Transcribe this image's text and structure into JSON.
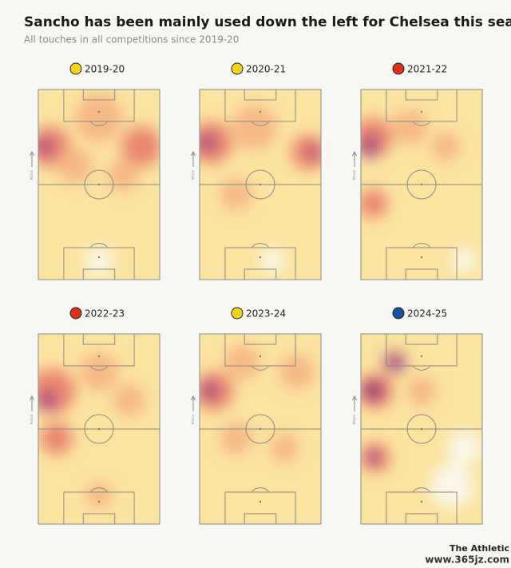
{
  "header": {
    "title": "Sancho has been mainly used down the left for Chelsea this season",
    "subtitle": "All touches in all competitions since 2019-20"
  },
  "panels": [
    {
      "season": "2019-20"
    },
    {
      "season": "2020-21"
    },
    {
      "season": "2021-22"
    },
    {
      "season": "2022-23"
    },
    {
      "season": "2023-24"
    },
    {
      "season": "2024-25"
    }
  ],
  "attack_label": "Attack",
  "footer": {
    "brand": "The Athletic",
    "watermark": "www.365jz.com"
  }
}
